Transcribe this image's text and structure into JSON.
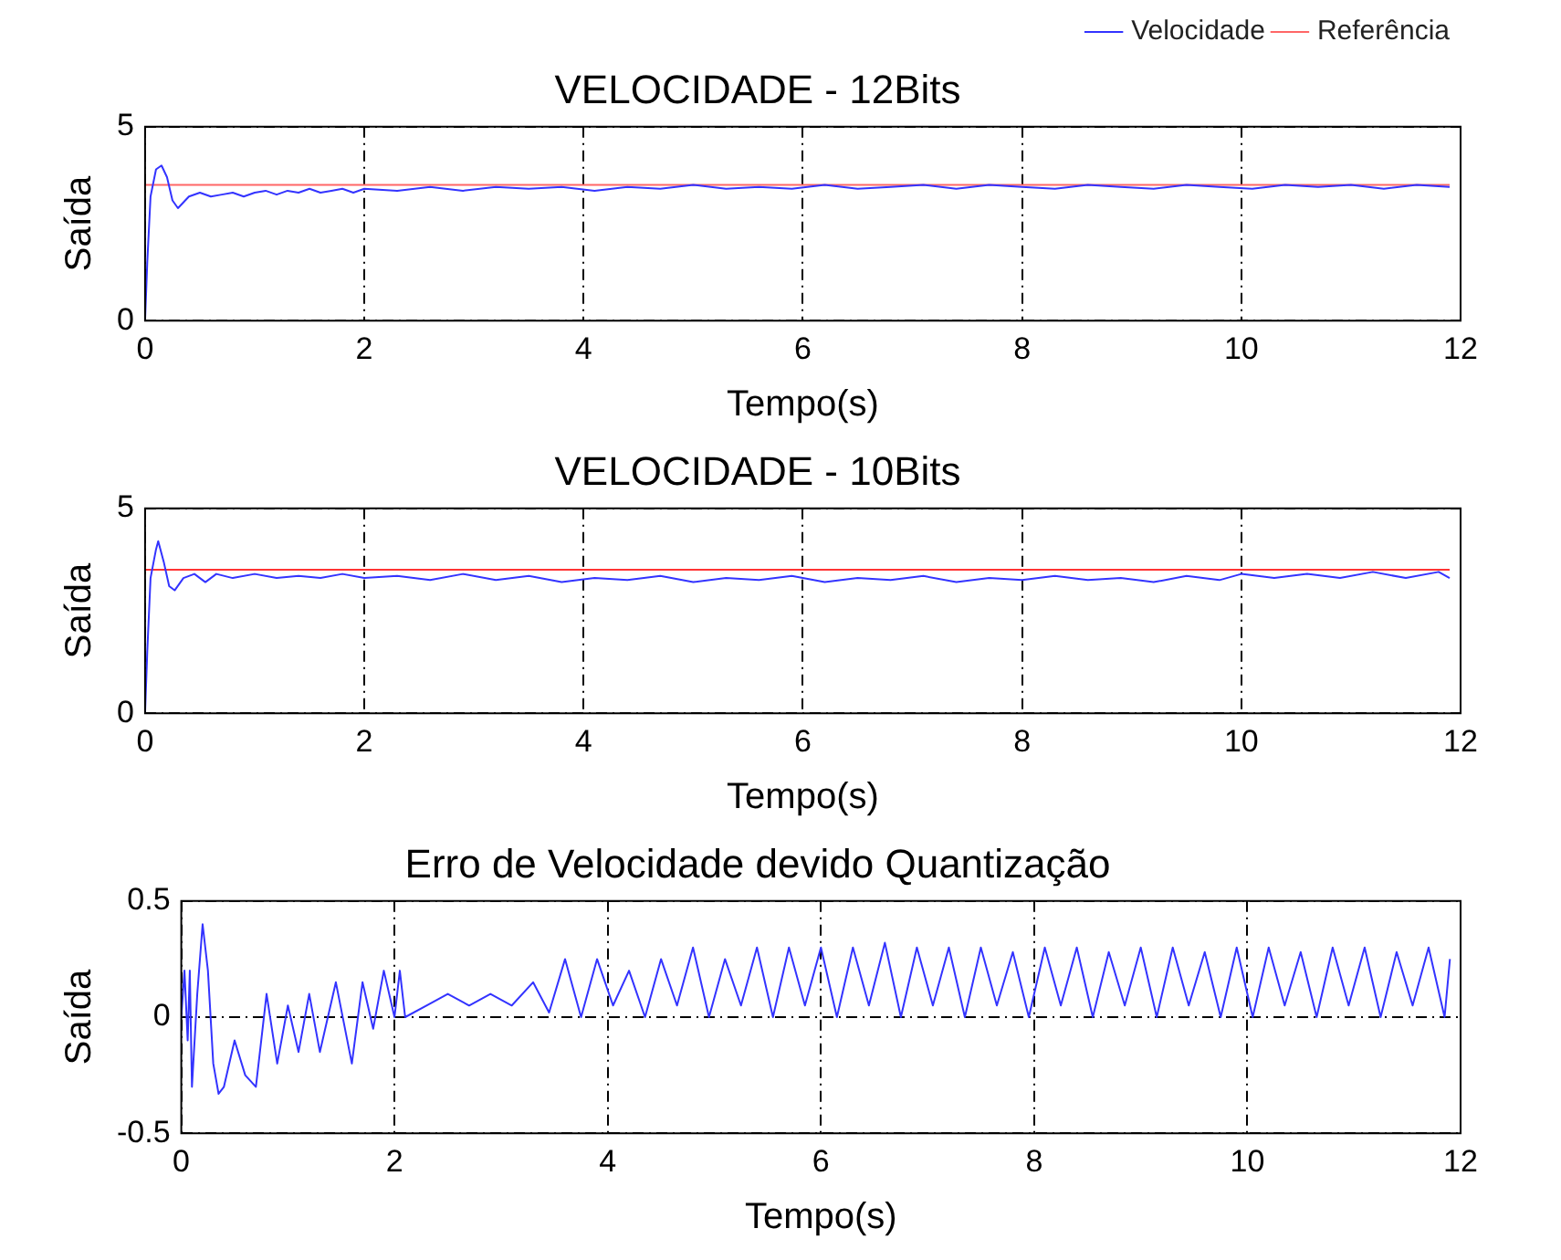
{
  "chart_data": [
    {
      "type": "line",
      "title": "VELOCIDADE - 12Bits",
      "xlabel": "Tempo(s)",
      "ylabel": "Saída",
      "xlim": [
        0,
        12
      ],
      "xticks": [
        0,
        2,
        4,
        6,
        8,
        10,
        12
      ],
      "ylim": [
        0,
        5
      ],
      "yticks": [
        0,
        5
      ],
      "grid": true,
      "legend": "top right",
      "marker": "none",
      "series": [
        {
          "name": "Velocidade",
          "color": "#3333ff",
          "x": [
            0,
            0.02,
            0.05,
            0.1,
            0.15,
            0.2,
            0.25,
            0.3,
            0.4,
            0.5,
            0.6,
            0.7,
            0.8,
            0.9,
            1.0,
            1.1,
            1.2,
            1.3,
            1.4,
            1.5,
            1.6,
            1.7,
            1.8,
            1.9,
            2.0,
            2.3,
            2.6,
            2.9,
            3.2,
            3.5,
            3.8,
            4.1,
            4.4,
            4.7,
            5.0,
            5.3,
            5.6,
            5.9,
            6.2,
            6.5,
            6.8,
            7.1,
            7.4,
            7.7,
            8.0,
            8.3,
            8.6,
            8.9,
            9.2,
            9.5,
            9.8,
            10.1,
            10.4,
            10.7,
            11.0,
            11.3,
            11.6,
            11.9
          ],
          "values": [
            0,
            1.5,
            3.2,
            3.9,
            4.0,
            3.7,
            3.1,
            2.9,
            3.2,
            3.3,
            3.2,
            3.25,
            3.3,
            3.2,
            3.3,
            3.35,
            3.25,
            3.35,
            3.3,
            3.4,
            3.3,
            3.35,
            3.4,
            3.3,
            3.4,
            3.35,
            3.45,
            3.35,
            3.45,
            3.4,
            3.45,
            3.35,
            3.45,
            3.4,
            3.5,
            3.4,
            3.45,
            3.4,
            3.5,
            3.4,
            3.45,
            3.5,
            3.4,
            3.5,
            3.45,
            3.4,
            3.5,
            3.45,
            3.4,
            3.5,
            3.45,
            3.4,
            3.5,
            3.45,
            3.5,
            3.4,
            3.5,
            3.45
          ]
        },
        {
          "name": "Referência",
          "color": "#ff6666",
          "x": [
            0,
            11.9
          ],
          "values": [
            3.5,
            3.5
          ]
        }
      ]
    },
    {
      "type": "line",
      "title": "VELOCIDADE - 10Bits",
      "xlabel": "Tempo(s)",
      "ylabel": "Saída",
      "xlim": [
        0,
        12
      ],
      "xticks": [
        0,
        2,
        4,
        6,
        8,
        10,
        12
      ],
      "ylim": [
        0,
        5
      ],
      "yticks": [
        0,
        5
      ],
      "grid": true,
      "marker": "none",
      "series": [
        {
          "color": "#3333ff",
          "x": [
            0,
            0.02,
            0.05,
            0.1,
            0.12,
            0.17,
            0.22,
            0.27,
            0.35,
            0.45,
            0.55,
            0.65,
            0.8,
            1.0,
            1.2,
            1.4,
            1.6,
            1.8,
            2.0,
            2.3,
            2.6,
            2.9,
            3.2,
            3.5,
            3.8,
            4.1,
            4.4,
            4.7,
            5.0,
            5.3,
            5.6,
            5.9,
            6.2,
            6.5,
            6.8,
            7.1,
            7.4,
            7.7,
            8.0,
            8.3,
            8.6,
            8.9,
            9.2,
            9.5,
            9.8,
            10.0,
            10.3,
            10.6,
            10.9,
            11.2,
            11.5,
            11.8,
            11.9
          ],
          "values": [
            0,
            1.5,
            3.3,
            4.0,
            4.2,
            3.7,
            3.1,
            3.0,
            3.3,
            3.4,
            3.2,
            3.4,
            3.3,
            3.4,
            3.3,
            3.35,
            3.3,
            3.4,
            3.3,
            3.35,
            3.25,
            3.4,
            3.25,
            3.35,
            3.2,
            3.3,
            3.25,
            3.35,
            3.2,
            3.3,
            3.25,
            3.35,
            3.2,
            3.3,
            3.25,
            3.35,
            3.2,
            3.3,
            3.25,
            3.35,
            3.25,
            3.3,
            3.2,
            3.35,
            3.25,
            3.4,
            3.3,
            3.4,
            3.3,
            3.45,
            3.3,
            3.45,
            3.3
          ]
        },
        {
          "color": "#ff3333",
          "x": [
            0,
            11.9
          ],
          "values": [
            3.5,
            3.5
          ]
        }
      ]
    },
    {
      "type": "line",
      "title": "Erro de Velocidade devido Quantização",
      "xlabel": "Tempo(s)",
      "ylabel": "Saída",
      "xlim": [
        0,
        12
      ],
      "xticks": [
        0,
        2,
        4,
        6,
        8,
        10,
        12
      ],
      "ylim": [
        -0.5,
        0.5
      ],
      "yticks": [
        -0.5,
        0,
        0.5
      ],
      "grid": true,
      "marker": "none",
      "series": [
        {
          "color": "#3333ff",
          "x": [
            0,
            0.03,
            0.06,
            0.08,
            0.1,
            0.15,
            0.2,
            0.25,
            0.3,
            0.35,
            0.4,
            0.5,
            0.6,
            0.7,
            0.8,
            0.9,
            1.0,
            1.1,
            1.2,
            1.3,
            1.45,
            1.6,
            1.7,
            1.8,
            1.9,
            2.0,
            2.05,
            2.1,
            2.3,
            2.5,
            2.7,
            2.9,
            3.1,
            3.3,
            3.45,
            3.6,
            3.75,
            3.9,
            4.05,
            4.2,
            4.35,
            4.5,
            4.65,
            4.8,
            4.95,
            5.1,
            5.25,
            5.4,
            5.55,
            5.7,
            5.85,
            6.0,
            6.15,
            6.3,
            6.45,
            6.6,
            6.75,
            6.9,
            7.05,
            7.2,
            7.35,
            7.5,
            7.65,
            7.8,
            7.95,
            8.1,
            8.25,
            8.4,
            8.55,
            8.7,
            8.85,
            9.0,
            9.15,
            9.3,
            9.45,
            9.6,
            9.75,
            9.9,
            10.05,
            10.2,
            10.35,
            10.5,
            10.65,
            10.8,
            10.95,
            11.1,
            11.25,
            11.4,
            11.55,
            11.7,
            11.85,
            11.9
          ],
          "values": [
            0,
            0.2,
            -0.1,
            0.2,
            -0.3,
            0.1,
            0.4,
            0.2,
            -0.2,
            -0.33,
            -0.3,
            -0.1,
            -0.25,
            -0.3,
            0.1,
            -0.2,
            0.05,
            -0.15,
            0.1,
            -0.15,
            0.15,
            -0.2,
            0.15,
            -0.05,
            0.2,
            0.0,
            0.2,
            0.0,
            0.05,
            0.1,
            0.05,
            0.1,
            0.05,
            0.15,
            0.02,
            0.25,
            0.0,
            0.25,
            0.05,
            0.2,
            0.0,
            0.25,
            0.05,
            0.3,
            0.0,
            0.25,
            0.05,
            0.3,
            0.0,
            0.3,
            0.05,
            0.3,
            0.0,
            0.3,
            0.05,
            0.32,
            0.0,
            0.3,
            0.05,
            0.3,
            0.0,
            0.3,
            0.05,
            0.28,
            0.0,
            0.3,
            0.05,
            0.3,
            0.0,
            0.28,
            0.05,
            0.3,
            0.0,
            0.3,
            0.05,
            0.28,
            0.0,
            0.3,
            0.0,
            0.3,
            0.05,
            0.28,
            0.0,
            0.3,
            0.05,
            0.3,
            0.0,
            0.28,
            0.05,
            0.3,
            0.0,
            0.25
          ]
        }
      ]
    }
  ]
}
